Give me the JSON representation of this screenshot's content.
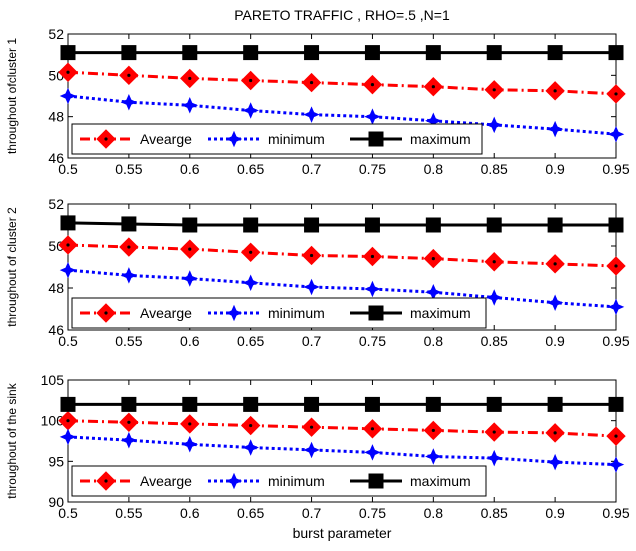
{
  "chart_data": [
    {
      "type": "line",
      "title": "PARETO TRAFFIC , RHO=.5 ,N=1",
      "xlabel": "",
      "ylabel": "throughout ofcluster 1",
      "x": [
        0.5,
        0.55,
        0.6,
        0.65,
        0.7,
        0.75,
        0.8,
        0.85,
        0.9,
        0.95
      ],
      "xticks": [
        "0.5",
        "0.55",
        "0.6",
        "0.65",
        "0.7",
        "0.75",
        "0.8",
        "0.85",
        "0.9",
        "0.95"
      ],
      "ylim": [
        46,
        52
      ],
      "yticks": [
        "46",
        "48",
        "50",
        "52"
      ],
      "series": [
        {
          "name": "Avearge",
          "values": [
            50.15,
            50.0,
            49.85,
            49.75,
            49.65,
            49.55,
            49.45,
            49.3,
            49.25,
            49.1
          ],
          "color": "#ff0000"
        },
        {
          "name": "minimum",
          "values": [
            49.0,
            48.7,
            48.55,
            48.3,
            48.1,
            48.0,
            47.8,
            47.6,
            47.4,
            47.15
          ],
          "color": "#0000ff"
        },
        {
          "name": "maximum",
          "values": [
            51.1,
            51.1,
            51.1,
            51.1,
            51.1,
            51.1,
            51.1,
            51.1,
            51.1,
            51.1
          ],
          "color": "#000000"
        }
      ],
      "legend": "bottom-left",
      "grid": false
    },
    {
      "type": "line",
      "title": "",
      "xlabel": "",
      "ylabel": "throughout of cluster 2",
      "x": [
        0.5,
        0.55,
        0.6,
        0.65,
        0.7,
        0.75,
        0.8,
        0.85,
        0.9,
        0.95
      ],
      "xticks": [
        "0.5",
        "0.55",
        "0.6",
        "0.65",
        "0.7",
        "0.75",
        "0.8",
        "0.85",
        "0.9",
        "0.95"
      ],
      "ylim": [
        46,
        52
      ],
      "yticks": [
        "46",
        "48",
        "50",
        "52"
      ],
      "series": [
        {
          "name": "Avearge",
          "values": [
            50.05,
            49.95,
            49.85,
            49.7,
            49.55,
            49.5,
            49.4,
            49.25,
            49.15,
            49.05
          ],
          "color": "#ff0000"
        },
        {
          "name": "minimum",
          "values": [
            48.85,
            48.6,
            48.45,
            48.25,
            48.05,
            47.95,
            47.8,
            47.55,
            47.3,
            47.1
          ],
          "color": "#0000ff"
        },
        {
          "name": "maximum",
          "values": [
            51.1,
            51.05,
            51.0,
            51.0,
            51.0,
            51.0,
            51.0,
            51.0,
            51.0,
            51.0
          ],
          "color": "#000000"
        }
      ],
      "legend": "bottom-left",
      "grid": false
    },
    {
      "type": "line",
      "title": "",
      "xlabel": "burst parameter",
      "ylabel": "throughout of the sink",
      "x": [
        0.5,
        0.55,
        0.6,
        0.65,
        0.7,
        0.75,
        0.8,
        0.85,
        0.9,
        0.95
      ],
      "xticks": [
        "0.5",
        "0.55",
        "0.6",
        "0.65",
        "0.7",
        "0.75",
        "0.8",
        "0.85",
        "0.9",
        "0.95"
      ],
      "ylim": [
        90,
        105
      ],
      "yticks": [
        "90",
        "95",
        "100",
        "105"
      ],
      "series": [
        {
          "name": "Avearge",
          "values": [
            100.0,
            99.8,
            99.6,
            99.4,
            99.2,
            99.0,
            98.8,
            98.6,
            98.5,
            98.1
          ],
          "color": "#ff0000"
        },
        {
          "name": "minimum",
          "values": [
            98.0,
            97.6,
            97.1,
            96.7,
            96.4,
            96.1,
            95.6,
            95.4,
            94.9,
            94.6
          ],
          "color": "#0000ff"
        },
        {
          "name": "maximum",
          "values": [
            102.0,
            102.0,
            102.0,
            102.0,
            102.0,
            102.0,
            102.0,
            102.0,
            102.0,
            102.0
          ],
          "color": "#000000"
        }
      ],
      "legend": "bottom-left",
      "grid": false
    }
  ]
}
